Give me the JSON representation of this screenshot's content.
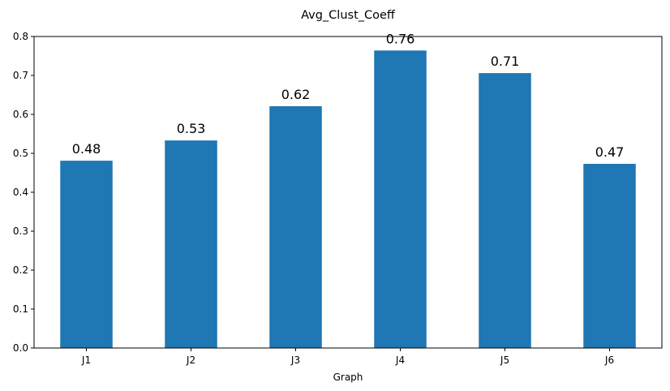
{
  "chart_data": {
    "type": "bar",
    "title": "Avg_Clust_Coeff",
    "xlabel": "Graph",
    "ylabel": "",
    "categories": [
      "J1",
      "J2",
      "J3",
      "J4",
      "J5",
      "J6"
    ],
    "values": [
      0.481,
      0.533,
      0.621,
      0.764,
      0.706,
      0.473
    ],
    "data_labels": [
      "0.48",
      "0.53",
      "0.62",
      "0.76",
      "0.71",
      "0.47"
    ],
    "ylim": [
      0,
      0.8
    ],
    "yticks": [
      0.0,
      0.1,
      0.2,
      0.3,
      0.4,
      0.5,
      0.6,
      0.7,
      0.8
    ],
    "ytick_labels": [
      "0.0",
      "0.1",
      "0.2",
      "0.3",
      "0.4",
      "0.5",
      "0.6",
      "0.7",
      "0.8"
    ],
    "bar_color": "#1f77b4",
    "grid": false,
    "legend": "none"
  }
}
